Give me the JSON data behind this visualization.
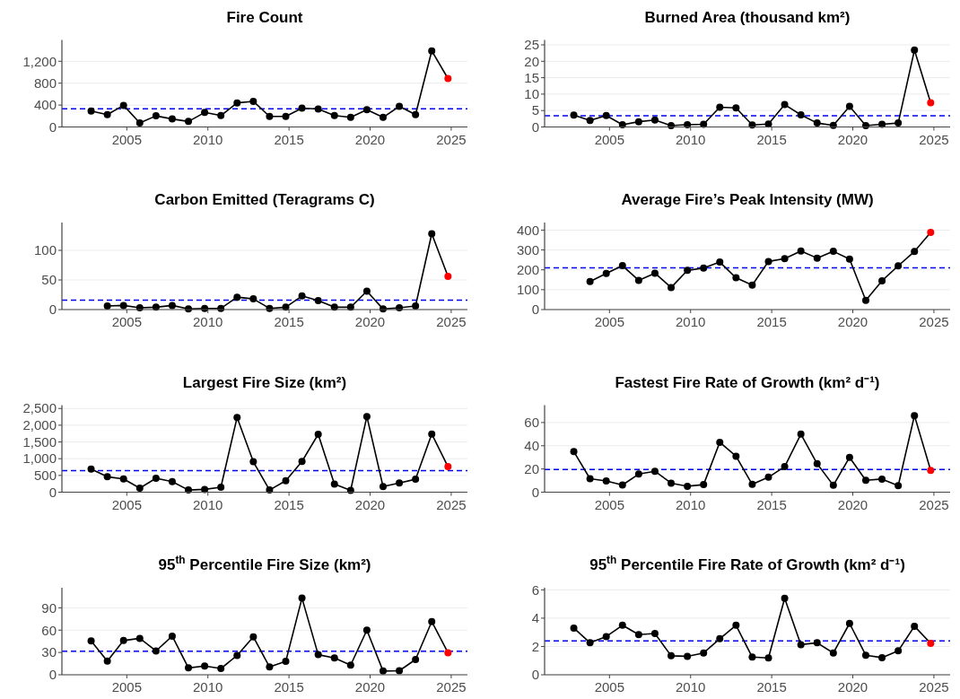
{
  "chart_data": [
    {
      "type": "line",
      "title": "Fire Count",
      "x": [
        2002.8,
        2003.8,
        2004.8,
        2005.8,
        2006.8,
        2007.8,
        2008.8,
        2009.8,
        2010.8,
        2011.8,
        2012.8,
        2013.8,
        2014.8,
        2015.8,
        2016.8,
        2017.8,
        2018.8,
        2019.8,
        2020.8,
        2021.8,
        2022.8,
        2023.8,
        2024.8
      ],
      "series": [
        {
          "color": "#000000",
          "colors": [
            "#000000",
            "#000000",
            "#000000",
            "#000000",
            "#000000",
            "#000000",
            "#000000",
            "#000000",
            "#000000",
            "#000000",
            "#000000",
            "#000000",
            "#000000",
            "#000000",
            "#000000",
            "#000000",
            "#000000",
            "#000000",
            "#000000",
            "#000000",
            "#000000",
            "#000000",
            "#ff0000"
          ],
          "values": [
            290,
            225,
            395,
            73,
            203,
            146,
            101,
            265,
            208,
            440,
            468,
            192,
            192,
            344,
            327,
            208,
            175,
            315,
            175,
            377,
            225,
            1390,
            885
          ]
        }
      ],
      "ref_lines": [
        {
          "axis": "y",
          "value": 332,
          "color": "#0000ff",
          "line_style": "dashed"
        }
      ],
      "xlim": [
        2001,
        2026
      ],
      "xticks": [
        2005,
        2010,
        2015,
        2020,
        2025
      ],
      "ylim": [
        0,
        1590
      ],
      "yticks": [
        0,
        400,
        800,
        {
          "value": 1200,
          "label": "1,200"
        }
      ],
      "grid": "y",
      "marker": "circle",
      "line_style": "solid"
    },
    {
      "type": "line",
      "title": "Burned Area (thousand km²)",
      "x": [
        2002.8,
        2003.8,
        2004.8,
        2005.8,
        2006.8,
        2007.8,
        2008.8,
        2009.8,
        2010.8,
        2011.8,
        2012.8,
        2013.8,
        2014.8,
        2015.8,
        2016.8,
        2017.8,
        2018.8,
        2019.8,
        2020.8,
        2021.8,
        2022.8,
        2023.8,
        2024.8
      ],
      "series": [
        {
          "color": "#000000",
          "colors": [
            "#000000",
            "#000000",
            "#000000",
            "#000000",
            "#000000",
            "#000000",
            "#000000",
            "#000000",
            "#000000",
            "#000000",
            "#000000",
            "#000000",
            "#000000",
            "#000000",
            "#000000",
            "#000000",
            "#000000",
            "#000000",
            "#000000",
            "#000000",
            "#000000",
            "#000000",
            "#ff0000"
          ],
          "values": [
            3.6,
            2.0,
            3.5,
            0.7,
            1.6,
            2.1,
            0.4,
            0.7,
            0.8,
            6.0,
            5.8,
            0.6,
            0.9,
            6.8,
            3.7,
            1.2,
            0.5,
            6.3,
            0.4,
            0.8,
            1.2,
            23.4,
            7.4
          ]
        }
      ],
      "ref_lines": [
        {
          "axis": "y",
          "value": 3.4,
          "color": "#0000ff",
          "line_style": "dashed"
        }
      ],
      "xlim": [
        2001,
        2026
      ],
      "xticks": [
        2005,
        2010,
        2015,
        2020,
        2025
      ],
      "ylim": [
        0,
        26.5
      ],
      "yticks": [
        0,
        5,
        10,
        15,
        20,
        25
      ],
      "grid": "y",
      "marker": "circle",
      "line_style": "solid"
    },
    {
      "type": "line",
      "title": "Carbon Emitted (Teragrams C)",
      "x": [
        2003.8,
        2004.8,
        2005.8,
        2006.8,
        2007.8,
        2008.8,
        2009.8,
        2010.8,
        2011.8,
        2012.8,
        2013.8,
        2014.8,
        2015.8,
        2016.8,
        2017.8,
        2018.8,
        2019.8,
        2020.8,
        2021.8,
        2022.8,
        2023.8,
        2024.8
      ],
      "series": [
        {
          "color": "#000000",
          "colors": [
            "#000000",
            "#000000",
            "#000000",
            "#000000",
            "#000000",
            "#000000",
            "#000000",
            "#000000",
            "#000000",
            "#000000",
            "#000000",
            "#000000",
            "#000000",
            "#000000",
            "#000000",
            "#000000",
            "#000000",
            "#000000",
            "#000000",
            "#000000",
            "#000000",
            "#ff0000"
          ],
          "values": [
            6,
            7,
            3,
            4,
            7,
            1,
            2,
            2,
            21,
            18,
            2,
            4,
            23,
            15,
            4,
            4,
            31,
            1,
            3,
            6,
            128,
            56
          ]
        }
      ],
      "ref_lines": [
        {
          "axis": "y",
          "value": 16,
          "color": "#0000ff",
          "line_style": "dashed"
        }
      ],
      "xlim": [
        2001,
        2026
      ],
      "xticks": [
        2005,
        2010,
        2015,
        2020,
        2025
      ],
      "ylim": [
        0,
        147
      ],
      "yticks": [
        0,
        50,
        100
      ],
      "grid": "y",
      "marker": "circle",
      "line_style": "solid"
    },
    {
      "type": "line",
      "title": "Average Fire’s Peak Intensity (MW)",
      "x": [
        2003.8,
        2004.8,
        2005.8,
        2006.8,
        2007.8,
        2008.8,
        2009.8,
        2010.8,
        2011.8,
        2012.8,
        2013.8,
        2014.8,
        2015.8,
        2016.8,
        2017.8,
        2018.8,
        2019.8,
        2020.8,
        2021.8,
        2022.8,
        2023.8,
        2024.8
      ],
      "series": [
        {
          "color": "#000000",
          "colors": [
            "#000000",
            "#000000",
            "#000000",
            "#000000",
            "#000000",
            "#000000",
            "#000000",
            "#000000",
            "#000000",
            "#000000",
            "#000000",
            "#000000",
            "#000000",
            "#000000",
            "#000000",
            "#000000",
            "#000000",
            "#000000",
            "#000000",
            "#000000",
            "#000000",
            "#ff0000"
          ],
          "values": [
            141,
            182,
            221,
            147,
            183,
            111,
            197,
            209,
            239,
            160,
            123,
            242,
            256,
            295,
            259,
            293,
            254,
            46,
            145,
            220,
            292,
            388
          ]
        }
      ],
      "ref_lines": [
        {
          "axis": "y",
          "value": 210,
          "color": "#0000ff",
          "line_style": "dashed"
        }
      ],
      "xlim": [
        2001,
        2026
      ],
      "xticks": [
        2005,
        2010,
        2015,
        2020,
        2025
      ],
      "ylim": [
        0,
        438
      ],
      "yticks": [
        0,
        100,
        200,
        300,
        400
      ],
      "grid": "y",
      "marker": "circle",
      "line_style": "solid"
    },
    {
      "type": "line",
      "title": "Largest Fire Size (km²)",
      "x": [
        2002.8,
        2003.8,
        2004.8,
        2005.8,
        2006.8,
        2007.8,
        2008.8,
        2009.8,
        2010.8,
        2011.8,
        2012.8,
        2013.8,
        2014.8,
        2015.8,
        2016.8,
        2017.8,
        2018.8,
        2019.8,
        2020.8,
        2021.8,
        2022.8,
        2023.8,
        2024.8
      ],
      "series": [
        {
          "color": "#000000",
          "colors": [
            "#000000",
            "#000000",
            "#000000",
            "#000000",
            "#000000",
            "#000000",
            "#000000",
            "#000000",
            "#000000",
            "#000000",
            "#000000",
            "#000000",
            "#000000",
            "#000000",
            "#000000",
            "#000000",
            "#000000",
            "#000000",
            "#000000",
            "#000000",
            "#000000",
            "#000000",
            "#ff0000"
          ],
          "values": [
            689,
            460,
            395,
            120,
            414,
            313,
            64,
            83,
            147,
            2233,
            910,
            64,
            340,
            919,
            1728,
            239,
            55,
            2261,
            165,
            276,
            386,
            1737,
            763
          ]
        }
      ],
      "ref_lines": [
        {
          "axis": "y",
          "value": 643,
          "color": "#0000ff",
          "line_style": "dashed"
        }
      ],
      "xlim": [
        2001,
        2026
      ],
      "xticks": [
        2005,
        2010,
        2015,
        2020,
        2025
      ],
      "ylim": [
        0,
        2600
      ],
      "yticks": [
        0,
        500,
        {
          "value": 1000,
          "label": "1,000"
        },
        {
          "value": 1500,
          "label": "1,500"
        },
        {
          "value": 2000,
          "label": "2,000"
        },
        {
          "value": 2500,
          "label": "2,500"
        }
      ],
      "grid": "y",
      "marker": "circle",
      "line_style": "solid"
    },
    {
      "type": "line",
      "title": "Fastest Fire Rate of Growth (km² d⁻¹)",
      "x": [
        2002.8,
        2003.8,
        2004.8,
        2005.8,
        2006.8,
        2007.8,
        2008.8,
        2009.8,
        2010.8,
        2011.8,
        2012.8,
        2013.8,
        2014.8,
        2015.8,
        2016.8,
        2017.8,
        2018.8,
        2019.8,
        2020.8,
        2021.8,
        2022.8,
        2023.8,
        2024.8
      ],
      "series": [
        {
          "color": "#000000",
          "colors": [
            "#000000",
            "#000000",
            "#000000",
            "#000000",
            "#000000",
            "#000000",
            "#000000",
            "#000000",
            "#000000",
            "#000000",
            "#000000",
            "#000000",
            "#000000",
            "#000000",
            "#000000",
            "#000000",
            "#000000",
            "#000000",
            "#000000",
            "#000000",
            "#000000",
            "#000000",
            "#ff0000"
          ],
          "values": [
            35,
            11.6,
            9.7,
            6.2,
            15.6,
            18,
            7.8,
            5.1,
            6.5,
            43,
            31,
            6.7,
            12.9,
            22,
            50,
            24.5,
            5.9,
            30,
            10.2,
            11.3,
            5.6,
            66,
            18.8
          ]
        }
      ],
      "ref_lines": [
        {
          "axis": "y",
          "value": 19.6,
          "color": "#0000ff",
          "line_style": "dashed"
        }
      ],
      "xlim": [
        2001,
        2026
      ],
      "xticks": [
        2005,
        2010,
        2015,
        2020,
        2025
      ],
      "ylim": [
        0,
        75
      ],
      "yticks": [
        0,
        20,
        40,
        60
      ],
      "grid": "y",
      "marker": "circle",
      "line_style": "solid"
    },
    {
      "type": "line",
      "title": "95$^{th}$ Percentile Fire Size (km²)",
      "x": [
        2002.8,
        2003.8,
        2004.8,
        2005.8,
        2006.8,
        2007.8,
        2008.8,
        2009.8,
        2010.8,
        2011.8,
        2012.8,
        2013.8,
        2014.8,
        2015.8,
        2016.8,
        2017.8,
        2018.8,
        2019.8,
        2020.8,
        2021.8,
        2022.8,
        2023.8,
        2024.8
      ],
      "series": [
        {
          "color": "#000000",
          "colors": [
            "#000000",
            "#000000",
            "#000000",
            "#000000",
            "#000000",
            "#000000",
            "#000000",
            "#000000",
            "#000000",
            "#000000",
            "#000000",
            "#000000",
            "#000000",
            "#000000",
            "#000000",
            "#000000",
            "#000000",
            "#000000",
            "#000000",
            "#000000",
            "#000000",
            "#000000",
            "#ff0000"
          ],
          "values": [
            45.6,
            18.4,
            46,
            49,
            32,
            52,
            9.2,
            11.7,
            8.4,
            26,
            51,
            10.5,
            18,
            103,
            27,
            22.6,
            13,
            60,
            5,
            5.4,
            20.5,
            71.5,
            29.7
          ]
        }
      ],
      "ref_lines": [
        {
          "axis": "y",
          "value": 31.8,
          "color": "#0000ff",
          "line_style": "dashed"
        }
      ],
      "xlim": [
        2001,
        2026
      ],
      "xticks": [
        2005,
        2010,
        2015,
        2020,
        2025
      ],
      "ylim": [
        0,
        117
      ],
      "yticks": [
        0,
        30,
        60,
        90
      ],
      "grid": "y",
      "marker": "circle",
      "line_style": "solid"
    },
    {
      "type": "line",
      "title": "95$^{th}$ Percentile Fire Rate of Growth (km² d⁻¹)",
      "x": [
        2002.8,
        2003.8,
        2004.8,
        2005.8,
        2006.8,
        2007.8,
        2008.8,
        2009.8,
        2010.8,
        2011.8,
        2012.8,
        2013.8,
        2014.8,
        2015.8,
        2016.8,
        2017.8,
        2018.8,
        2019.8,
        2020.8,
        2021.8,
        2022.8,
        2023.8,
        2024.8
      ],
      "series": [
        {
          "color": "#000000",
          "colors": [
            "#000000",
            "#000000",
            "#000000",
            "#000000",
            "#000000",
            "#000000",
            "#000000",
            "#000000",
            "#000000",
            "#000000",
            "#000000",
            "#000000",
            "#000000",
            "#000000",
            "#000000",
            "#000000",
            "#000000",
            "#000000",
            "#000000",
            "#000000",
            "#000000",
            "#000000",
            "#ff0000"
          ],
          "values": [
            3.3,
            2.26,
            2.7,
            3.5,
            2.84,
            2.92,
            1.34,
            1.3,
            1.54,
            2.55,
            3.5,
            1.25,
            1.19,
            5.41,
            2.13,
            2.26,
            1.54,
            3.63,
            1.38,
            1.21,
            1.69,
            3.43,
            2.22
          ]
        }
      ],
      "ref_lines": [
        {
          "axis": "y",
          "value": 2.4,
          "color": "#0000ff",
          "line_style": "dashed"
        }
      ],
      "xlim": [
        2001,
        2026
      ],
      "xticks": [
        2005,
        2010,
        2015,
        2020,
        2025
      ],
      "ylim": [
        0,
        6.15
      ],
      "yticks": [
        0,
        2,
        4,
        6
      ],
      "grid": "y",
      "marker": "circle",
      "line_style": "solid"
    }
  ]
}
